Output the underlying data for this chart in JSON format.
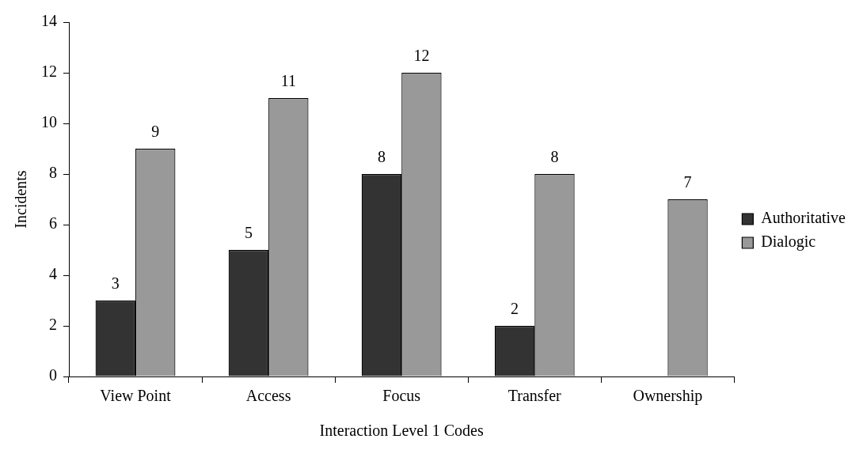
{
  "chart_data": {
    "type": "bar",
    "xlabel": "Interaction Level 1 Codes",
    "ylabel": "Incidents",
    "categories": [
      "View Point",
      "Access",
      "Focus",
      "Transfer",
      "Ownership"
    ],
    "series": [
      {
        "name": "Authoritative",
        "color": "#333333",
        "values": [
          3,
          5,
          8,
          2,
          null
        ]
      },
      {
        "name": "Dialogic",
        "color": "#999999",
        "values": [
          9,
          11,
          12,
          8,
          7
        ]
      }
    ],
    "ylim": [
      0,
      14
    ],
    "yticks": [
      0,
      2,
      4,
      6,
      8,
      10,
      12,
      14
    ],
    "grid": false,
    "legend": "right",
    "data_labels": true
  }
}
